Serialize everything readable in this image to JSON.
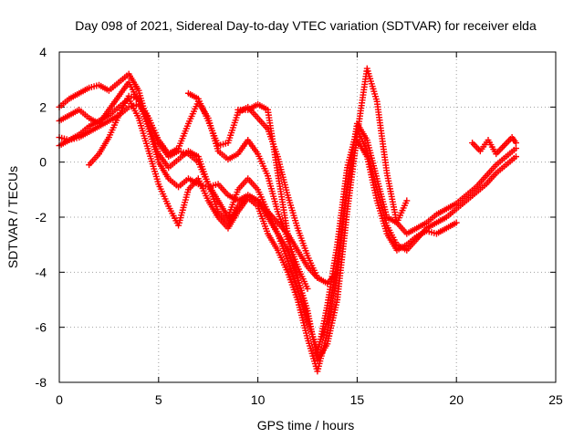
{
  "chart_data": {
    "type": "scatter",
    "title": "Day 098 of 2021, Sidereal Day-to-day VTEC variation (SDTVAR) for receiver elda",
    "xlabel": "GPS time / hours",
    "ylabel": "SDTVAR / TECUs",
    "xlim": [
      0,
      25
    ],
    "ylim": [
      -8,
      4
    ],
    "x_ticks": [
      0,
      5,
      10,
      15,
      20,
      25
    ],
    "y_ticks": [
      -8,
      -6,
      -4,
      -2,
      0,
      2,
      4
    ],
    "grid": true,
    "marker": "plus",
    "color": "#ff0000",
    "series": [
      {
        "x": [
          0.0,
          0.5,
          1.0,
          1.5,
          2.0,
          2.5,
          3.0,
          3.5,
          4.0,
          4.5,
          5.0,
          5.5,
          6.0,
          6.5,
          7.0,
          7.5,
          8.0,
          8.5,
          9.0,
          9.5,
          10.0,
          10.5,
          11.0,
          11.5,
          12.0,
          12.5,
          13.0,
          13.5,
          14.0,
          14.5,
          15.0,
          15.5,
          16.0,
          16.5,
          17.0,
          17.5,
          18.0,
          18.5,
          19.0,
          19.5,
          20.0,
          20.5,
          21.0,
          21.5,
          22.0,
          22.5,
          23.0
        ],
        "y": [
          2.0,
          2.3,
          2.5,
          2.7,
          2.8,
          2.6,
          2.9,
          3.2,
          2.6,
          1.3,
          0.3,
          -0.2,
          0.1,
          0.4,
          0.2,
          -0.8,
          -1.8,
          -2.2,
          -1.6,
          -1.2,
          -1.4,
          -2.0,
          -2.6,
          -3.6,
          -4.6,
          -5.8,
          -6.8,
          -5.8,
          -3.6,
          -0.8,
          1.4,
          0.8,
          -0.6,
          -2.0,
          -2.2,
          -2.6,
          -2.4,
          -2.2,
          -1.9,
          -1.7,
          -1.5,
          -1.2,
          -0.9,
          -0.5,
          -0.1,
          0.2,
          0.5
        ]
      },
      {
        "x": [
          0.0,
          0.5,
          1.0,
          1.5,
          2.0,
          2.5,
          3.0,
          3.5,
          4.0,
          4.5,
          5.0,
          5.5,
          6.0,
          6.5,
          7.0,
          7.5,
          8.0,
          8.5,
          9.0,
          9.5,
          10.0,
          10.5,
          11.0,
          11.5,
          12.0,
          12.5,
          13.0,
          13.5,
          14.0,
          14.5,
          15.0,
          15.5,
          16.0,
          16.5,
          17.0,
          17.5,
          18.0,
          18.5,
          19.0,
          19.5,
          20.0,
          20.5,
          21.0,
          21.5,
          22.0,
          22.5,
          23.0
        ],
        "y": [
          1.5,
          1.7,
          1.9,
          1.6,
          1.4,
          1.9,
          2.4,
          2.9,
          2.2,
          1.2,
          0.0,
          -0.6,
          -0.9,
          -0.6,
          -0.8,
          -0.9,
          -0.8,
          -1.2,
          -1.4,
          -1.2,
          -1.4,
          -1.8,
          -2.6,
          -3.2,
          -4.2,
          -5.6,
          -7.0,
          -5.2,
          -3.0,
          -0.2,
          1.2,
          0.4,
          -1.0,
          -2.3,
          -3.0,
          -3.2,
          -2.8,
          -2.4,
          -2.2,
          -2.0,
          -1.7,
          -1.4,
          -1.1,
          -0.8,
          -0.4,
          -0.1,
          0.2
        ]
      },
      {
        "x": [
          0.0,
          0.5,
          1.0,
          1.5,
          2.0,
          2.5,
          3.0,
          3.5,
          4.0,
          4.5,
          5.0,
          5.5,
          6.0,
          6.5,
          7.0,
          7.5,
          8.0,
          8.5,
          9.0,
          9.5,
          10.0,
          10.5,
          11.0,
          11.5,
          12.0,
          12.5,
          13.0,
          13.5,
          14.0,
          14.5,
          15.0,
          15.5,
          16.0,
          16.5,
          17.0,
          17.5,
          18.0,
          18.5,
          19.0,
          19.5,
          20.0
        ],
        "y": [
          0.9,
          0.8,
          1.0,
          1.3,
          1.5,
          1.7,
          2.0,
          2.3,
          1.6,
          0.4,
          -0.8,
          -1.6,
          -2.3,
          -1.0,
          -0.6,
          -1.4,
          -2.0,
          -2.4,
          -1.8,
          -1.3,
          -1.6,
          -2.6,
          -3.2,
          -4.0,
          -5.0,
          -6.4,
          -7.6,
          -6.2,
          -4.0,
          -1.0,
          0.8,
          0.2,
          -1.4,
          -2.6,
          -3.2,
          -3.0,
          -2.7,
          -2.5,
          -2.6,
          -2.4,
          -2.2
        ]
      },
      {
        "x": [
          0.0,
          0.5,
          1.0,
          1.5,
          2.0,
          2.5,
          3.0,
          3.5,
          4.0,
          4.5,
          5.0,
          5.5,
          6.0,
          6.5,
          7.0,
          7.5,
          8.0,
          8.5,
          9.0,
          9.5,
          10.0,
          10.5,
          11.0,
          11.5,
          12.0,
          12.5,
          13.0,
          13.5,
          14.0
        ],
        "y": [
          0.6,
          0.8,
          0.9,
          1.1,
          1.3,
          1.5,
          1.7,
          2.0,
          2.1,
          1.6,
          0.7,
          0.2,
          0.4,
          0.3,
          0.0,
          -0.8,
          -1.4,
          -2.0,
          -1.0,
          -0.6,
          -1.0,
          -1.8,
          -2.2,
          -2.6,
          -3.2,
          -3.8,
          -4.2,
          -4.4,
          -4.0
        ]
      },
      {
        "x": [
          1.5,
          2.0,
          2.5,
          3.0,
          3.5,
          4.0,
          4.5,
          5.0,
          5.5,
          6.0,
          6.5,
          7.0,
          7.5,
          8.0,
          8.5,
          9.0,
          9.5,
          10.0,
          10.5,
          11.0,
          11.5,
          12.0,
          12.5
        ],
        "y": [
          -0.1,
          0.3,
          0.9,
          1.7,
          2.4,
          2.3,
          1.6,
          0.8,
          0.3,
          0.5,
          1.4,
          2.2,
          1.6,
          0.4,
          0.1,
          0.3,
          0.8,
          0.3,
          -0.5,
          -1.8,
          -2.8,
          -3.8,
          -4.6
        ]
      },
      {
        "x": [
          6.5,
          7.0,
          7.5,
          8.0,
          8.5,
          9.0,
          9.5,
          10.0,
          10.5,
          11.0,
          11.5,
          12.0,
          12.5,
          13.0
        ],
        "y": [
          2.5,
          2.3,
          1.5,
          0.6,
          0.7,
          1.8,
          2.0,
          1.6,
          1.2,
          0.2,
          -1.2,
          -2.4,
          -3.4,
          -4.2
        ]
      },
      {
        "x": [
          9.0,
          9.5,
          10.0,
          10.5,
          11.0,
          11.5,
          12.0,
          12.5,
          13.0,
          13.5,
          14.0,
          14.5,
          15.0,
          15.5,
          16.0,
          16.5,
          17.0,
          17.5
        ],
        "y": [
          1.9,
          1.9,
          2.1,
          1.9,
          -0.4,
          -2.6,
          -4.2,
          -5.4,
          -7.2,
          -6.6,
          -5.0,
          -1.8,
          1.0,
          3.4,
          2.2,
          -0.4,
          -2.2,
          -1.4
        ]
      },
      {
        "x": [
          20.8,
          21.2,
          21.6,
          22.0,
          22.4,
          22.8,
          23.0
        ],
        "y": [
          0.7,
          0.4,
          0.8,
          0.3,
          0.6,
          0.9,
          0.7
        ]
      }
    ]
  }
}
